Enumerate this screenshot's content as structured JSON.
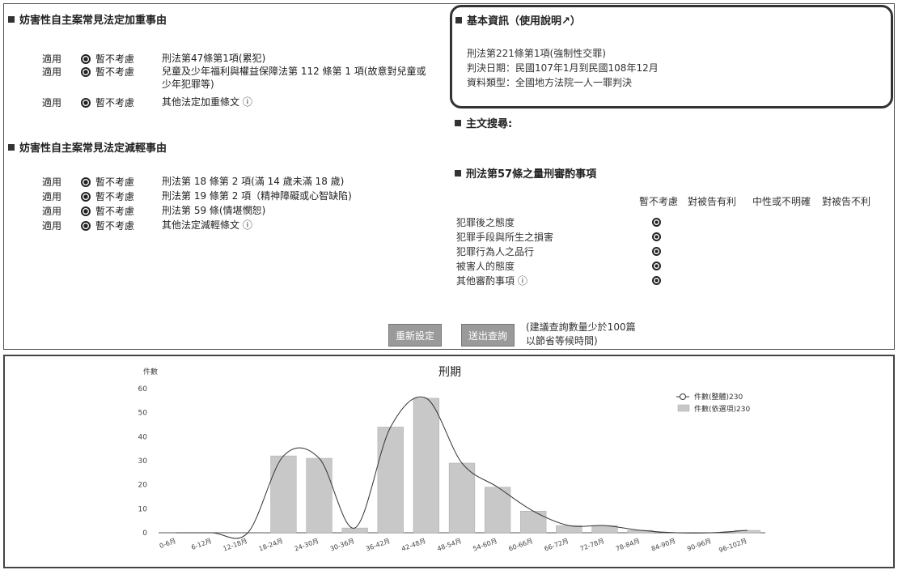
{
  "aggravating": {
    "title": "妨害性自主案常見法定加重事由",
    "rows": [
      {
        "apply": "適用",
        "skip": "暫不考慮",
        "law": "刑法第47條第1項(累犯)"
      },
      {
        "apply": "適用",
        "skip": "暫不考慮",
        "law": "兒童及少年福利與權益保障法第 112 條第 1 項(故意對兒童或少年犯罪等)"
      },
      {
        "apply": "適用",
        "skip": "暫不考慮",
        "law": "其他法定加重條文 ⓘ"
      }
    ]
  },
  "mitigating": {
    "title": "妨害性自主案常見法定減輕事由",
    "rows": [
      {
        "apply": "適用",
        "skip": "暫不考慮",
        "law": "刑法第 18 條第 2 項(滿 14 歲未滿 18 歲)"
      },
      {
        "apply": "適用",
        "skip": "暫不考慮",
        "law": "刑法第 19 條第 2 項（精神障礙或心智缺陷)"
      },
      {
        "apply": "適用",
        "skip": "暫不考慮",
        "law": "刑法第 59 條(情堪憫恕)"
      },
      {
        "apply": "適用",
        "skip": "暫不考慮",
        "law": "其他法定減輕條文 ⓘ"
      }
    ]
  },
  "basic_info": {
    "title": "基本資訊（使用說明↗）",
    "law": "刑法第221條第1項(強制性交罪)",
    "date": "判決日期：民國107年1月到民國108年12月",
    "type": "資料類型：全國地方法院一人一罪判決"
  },
  "main_search": {
    "title": "主文搜尋:"
  },
  "factors": {
    "title": "刑法第57條之量刑審酌事項",
    "columns": [
      "暫不考慮",
      "對被告有利",
      "中性或不明確",
      "對被告不利"
    ],
    "rows": [
      "犯罪後之態度",
      "犯罪手段與所生之損害",
      "犯罪行為人之品行",
      "被害人的態度",
      "其他審酌事項 ⓘ"
    ]
  },
  "buttons": {
    "reset": "重新設定",
    "query": "送出查詢"
  },
  "note": {
    "line1": "(建議查詢數量少於100篇",
    "line2": "以節省等候時間)"
  },
  "chart_data": {
    "type": "bar",
    "title": "刑期",
    "ylabel": "件數",
    "ylim": [
      0,
      60
    ],
    "yticks": [
      0,
      10,
      20,
      30,
      40,
      50,
      60
    ],
    "categories": [
      "0-6月",
      "6-12月",
      "12-18月",
      "18-24月",
      "24-30月",
      "30-36月",
      "36-42月",
      "42-48月",
      "48-54月",
      "54-60月",
      "60-66月",
      "66-72月",
      "72-78月",
      "78-84月",
      "84-90月",
      "90-96月",
      "96-102月"
    ],
    "series": [
      {
        "name": "件數(依選項)230",
        "kind": "bar",
        "color": "#c8c8c8",
        "values": [
          0,
          0,
          0,
          32,
          31,
          2,
          44,
          56,
          29,
          19,
          9,
          3,
          3,
          1,
          0,
          0,
          1
        ]
      },
      {
        "name": "件數(整體)230",
        "kind": "line",
        "color": "#333333",
        "values": [
          0,
          0,
          0,
          32,
          31,
          2,
          44,
          56,
          29,
          19,
          9,
          3,
          3,
          1,
          0,
          0,
          1
        ]
      }
    ],
    "legend_position": "top-right"
  }
}
